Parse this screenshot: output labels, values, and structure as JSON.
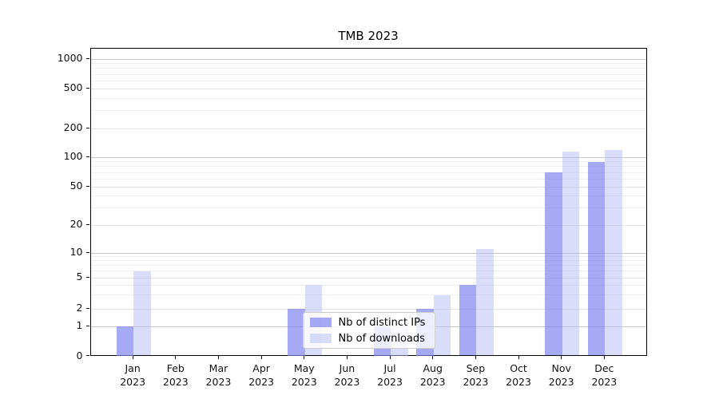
{
  "chart_data": {
    "type": "bar",
    "title": "TMB 2023",
    "categories": [
      "Jan",
      "Feb",
      "Mar",
      "Apr",
      "May",
      "Jun",
      "Jul",
      "Aug",
      "Sep",
      "Oct",
      "Nov",
      "Dec"
    ],
    "year": "2023",
    "series": [
      {
        "name": "Nb of distinct IPs",
        "color": "#7c81ef",
        "alpha": 0.68,
        "values": [
          1,
          0,
          0,
          0,
          2,
          0,
          1,
          2,
          4,
          0,
          70,
          90
        ]
      },
      {
        "name": "Nb of downloads",
        "color": "#b9bdf4",
        "alpha": 0.52,
        "values": [
          6,
          0,
          0,
          0,
          4,
          0,
          1,
          3,
          11,
          0,
          115,
          120
        ]
      }
    ],
    "yscale": "symlog",
    "yticks": [
      0,
      1,
      2,
      5,
      10,
      20,
      50,
      100,
      200,
      500,
      1000
    ],
    "ylim": [
      0,
      1300
    ],
    "xlabel": "",
    "ylabel": "",
    "grid": "on",
    "legend_position": "lower center"
  },
  "colors": {
    "ips_bar_composite": "#a6aaf2",
    "downloads_bar_composite": "#d8daf8",
    "major_grid": "#c9c9c9",
    "minor_grid": "#efeff1",
    "axis": "#000000",
    "legend_border": "#cccccc"
  }
}
